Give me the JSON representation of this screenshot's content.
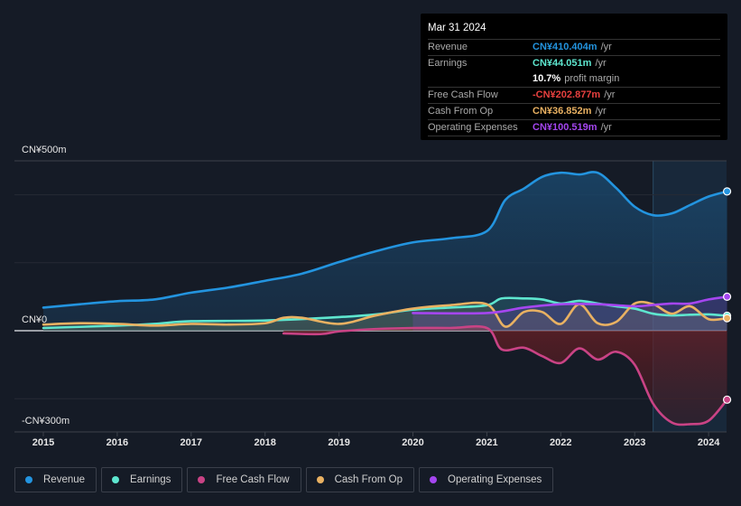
{
  "tooltip": {
    "date": "Mar 31 2024",
    "rows": [
      {
        "label": "Revenue",
        "value": "CN¥410.404m",
        "unit": "/yr",
        "color": "#2394df"
      },
      {
        "label": "Earnings",
        "value": "CN¥44.051m",
        "unit": "/yr",
        "color": "#5ee6cf"
      },
      {
        "label": "",
        "value": "10.7%",
        "unit": "profit margin",
        "color": "#ffffff"
      },
      {
        "label": "Free Cash Flow",
        "value": "-CN¥202.877m",
        "unit": "/yr",
        "color": "#e8403f"
      },
      {
        "label": "Cash From Op",
        "value": "CN¥36.852m",
        "unit": "/yr",
        "color": "#e9b162"
      },
      {
        "label": "Operating Expenses",
        "value": "CN¥100.519m",
        "unit": "/yr",
        "color": "#a546f0"
      }
    ]
  },
  "legend": [
    {
      "label": "Revenue",
      "color": "#2394df"
    },
    {
      "label": "Earnings",
      "color": "#5ee6cf"
    },
    {
      "label": "Free Cash Flow",
      "color": "#c94385"
    },
    {
      "label": "Cash From Op",
      "color": "#e9b162"
    },
    {
      "label": "Operating Expenses",
      "color": "#a546f0"
    }
  ],
  "chart_data": {
    "type": "line",
    "title": "",
    "xlabel": "",
    "ylabel": "",
    "ylim": [
      -300,
      500
    ],
    "xlim": [
      2014.6,
      2024.25
    ],
    "y_tick_labels": [
      {
        "value": 500,
        "label": "CN¥500m"
      },
      {
        "value": 0,
        "label": "CN¥0"
      },
      {
        "value": -300,
        "label": "-CN¥300m"
      }
    ],
    "gridlines": [
      500,
      400,
      200,
      0,
      -200
    ],
    "x_ticks": [
      2015,
      2016,
      2017,
      2018,
      2019,
      2020,
      2021,
      2022,
      2023,
      2024
    ],
    "forecast_shade_start": 2023.25,
    "series": [
      {
        "name": "Revenue",
        "color": "#2394df",
        "x": [
          2015,
          2015.5,
          2016,
          2016.5,
          2017,
          2017.5,
          2018,
          2018.5,
          2019,
          2019.5,
          2020,
          2020.5,
          2021,
          2021.25,
          2021.5,
          2021.75,
          2022,
          2022.25,
          2022.5,
          2022.75,
          2023,
          2023.25,
          2023.5,
          2023.75,
          2024,
          2024.25
        ],
        "values": [
          68,
          78,
          87,
          92,
          112,
          127,
          147,
          168,
          202,
          234,
          260,
          272,
          293,
          385,
          418,
          453,
          465,
          460,
          465,
          420,
          365,
          340,
          345,
          370,
          395,
          410
        ]
      },
      {
        "name": "Earnings",
        "color": "#5ee6cf",
        "x": [
          2015,
          2016,
          2016.5,
          2017,
          2018,
          2019,
          2019.5,
          2020,
          2020.5,
          2021,
          2021.2,
          2021.5,
          2021.75,
          2022,
          2022.25,
          2022.5,
          2022.75,
          2023,
          2023.25,
          2023.5,
          2023.75,
          2024,
          2024.25
        ],
        "values": [
          8,
          15,
          20,
          28,
          30,
          40,
          48,
          62,
          68,
          75,
          95,
          95,
          92,
          80,
          88,
          80,
          72,
          65,
          50,
          45,
          47,
          48,
          44
        ]
      },
      {
        "name": "Free Cash Flow",
        "color": "#c94385",
        "x": [
          2018.25,
          2018.75,
          2019,
          2019.5,
          2020,
          2020.5,
          2021,
          2021.2,
          2021.5,
          2021.75,
          2022,
          2022.25,
          2022.5,
          2022.75,
          2023,
          2023.25,
          2023.5,
          2023.75,
          2024,
          2024.25
        ],
        "values": [
          -8,
          -10,
          -2,
          5,
          8,
          8,
          8,
          -55,
          -50,
          -75,
          -95,
          -52,
          -85,
          -62,
          -100,
          -215,
          -270,
          -275,
          -265,
          -203
        ]
      },
      {
        "name": "Cash From Op",
        "color": "#e9b162",
        "x": [
          2015,
          2015.5,
          2016,
          2016.5,
          2017,
          2017.5,
          2018,
          2018.25,
          2018.5,
          2019,
          2019.5,
          2020,
          2020.5,
          2021,
          2021.25,
          2021.5,
          2021.75,
          2022,
          2022.25,
          2022.5,
          2022.75,
          2023,
          2023.25,
          2023.5,
          2023.75,
          2024,
          2024.25
        ],
        "values": [
          18,
          22,
          20,
          15,
          20,
          18,
          22,
          38,
          38,
          20,
          45,
          65,
          75,
          78,
          12,
          55,
          55,
          20,
          78,
          22,
          26,
          80,
          78,
          50,
          72,
          34,
          37
        ]
      },
      {
        "name": "Operating Expenses",
        "color": "#a546f0",
        "x": [
          2020,
          2021,
          2021.5,
          2022,
          2022.5,
          2023,
          2023.25,
          2023.5,
          2023.75,
          2024,
          2024.25
        ],
        "values": [
          52,
          52,
          68,
          78,
          78,
          72,
          76,
          80,
          80,
          92,
          100
        ]
      }
    ]
  }
}
